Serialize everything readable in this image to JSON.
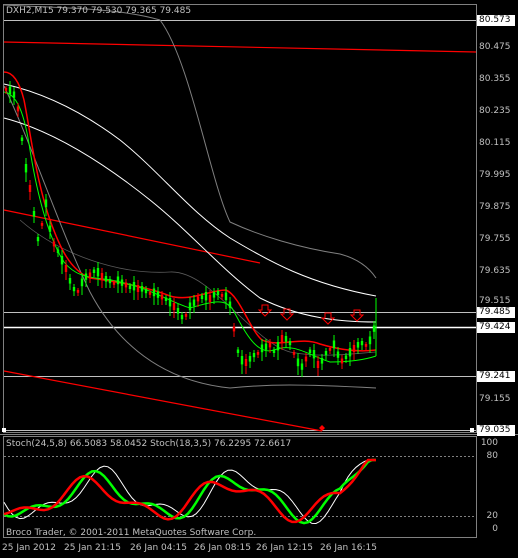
{
  "chart_header": "DXH2,M15  79.370 79.530 79.365 79.485",
  "price_labels": [
    {
      "text": "80.573",
      "style": "highlight"
    },
    {
      "text": "80.475",
      "style": "plain"
    },
    {
      "text": "80.355",
      "style": "plain"
    },
    {
      "text": "80.235",
      "style": "plain"
    },
    {
      "text": "80.115",
      "style": "plain"
    },
    {
      "text": "79.995",
      "style": "plain"
    },
    {
      "text": "79.875",
      "style": "plain"
    },
    {
      "text": "79.755",
      "style": "plain"
    },
    {
      "text": "79.635",
      "style": "plain"
    },
    {
      "text": "79.515",
      "style": "plain"
    },
    {
      "text": "79.485",
      "style": "highlight"
    },
    {
      "text": "79.424",
      "style": "highlight"
    },
    {
      "text": "79.241",
      "style": "highlight"
    },
    {
      "text": "79.155",
      "style": "plain"
    },
    {
      "text": "79.035",
      "style": "highlight"
    }
  ],
  "indicator_header": "Stoch(24,5,8) 66.5083 58.0452  Stoch(18,3,5) 76.2295 72.6617",
  "indicator_levels": [
    "100",
    "80",
    "20",
    "0"
  ],
  "copyright": "Broco Trader, © 2001-2011 MetaQuotes Software Corp.",
  "time_labels": [
    "25 Jan 2012",
    "25 Jan 21:15",
    "26 Jan 04:15",
    "26 Jan 08:15",
    "26 Jan 12:15",
    "26 Jan 16:15"
  ],
  "colors": {
    "background": "#000000",
    "bull_candle": "#00ff00",
    "bear_candle": "#ff0000",
    "ma_white": "#ffffff",
    "bands_gray": "#808080",
    "trendline_red": "#ff0000",
    "arrow_red": "#ff0000",
    "stoch_green": "#00ff00",
    "stoch_red": "#ff0000",
    "stoch_white": "#ffffff"
  },
  "signal_arrows": [
    "arrow-down",
    "arrow-down",
    "arrow-down",
    "arrow-down"
  ]
}
